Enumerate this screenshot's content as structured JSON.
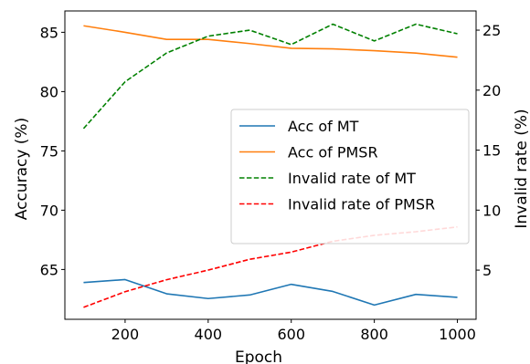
{
  "chart_data": {
    "type": "line",
    "x": [
      100,
      200,
      300,
      400,
      500,
      600,
      700,
      800,
      900,
      1000
    ],
    "xlabel": "Epoch",
    "xticks": [
      200,
      400,
      600,
      800,
      1000
    ],
    "xlim": [
      55,
      1045
    ],
    "left_axis": {
      "label": "Accuracy (%)",
      "ylim": [
        60.8,
        86.8
      ],
      "ticks": [
        65,
        70,
        75,
        80,
        85
      ]
    },
    "right_axis": {
      "label": "Invalid rate (%)",
      "ylim": [
        0.9,
        26.6
      ],
      "ticks": [
        5,
        10,
        15,
        20,
        25
      ]
    },
    "series": [
      {
        "name": "Acc of MT",
        "axis": "left",
        "style": "solid",
        "color": "#1f77b4",
        "values": [
          63.9,
          64.15,
          62.95,
          62.55,
          62.85,
          63.75,
          63.15,
          62.0,
          62.9,
          62.65
        ]
      },
      {
        "name": "Acc of PMSR",
        "axis": "left",
        "style": "solid",
        "color": "#ff7f0e",
        "values": [
          85.55,
          85.0,
          84.4,
          84.4,
          84.05,
          83.65,
          83.6,
          83.45,
          83.25,
          82.9
        ]
      },
      {
        "name": "Invalid rate of MT",
        "axis": "right",
        "style": "dashed",
        "color": "#008000",
        "values": [
          16.8,
          20.7,
          23.1,
          24.5,
          25.0,
          23.8,
          25.5,
          24.1,
          25.5,
          24.7
        ]
      },
      {
        "name": "Invalid rate of PMSR",
        "axis": "right",
        "style": "dashed",
        "color": "#ff0000",
        "values": [
          1.9,
          3.2,
          4.2,
          5.0,
          5.9,
          6.5,
          7.4,
          7.9,
          8.2,
          8.6
        ]
      }
    ],
    "legend_position": "center-right",
    "grid": false
  }
}
